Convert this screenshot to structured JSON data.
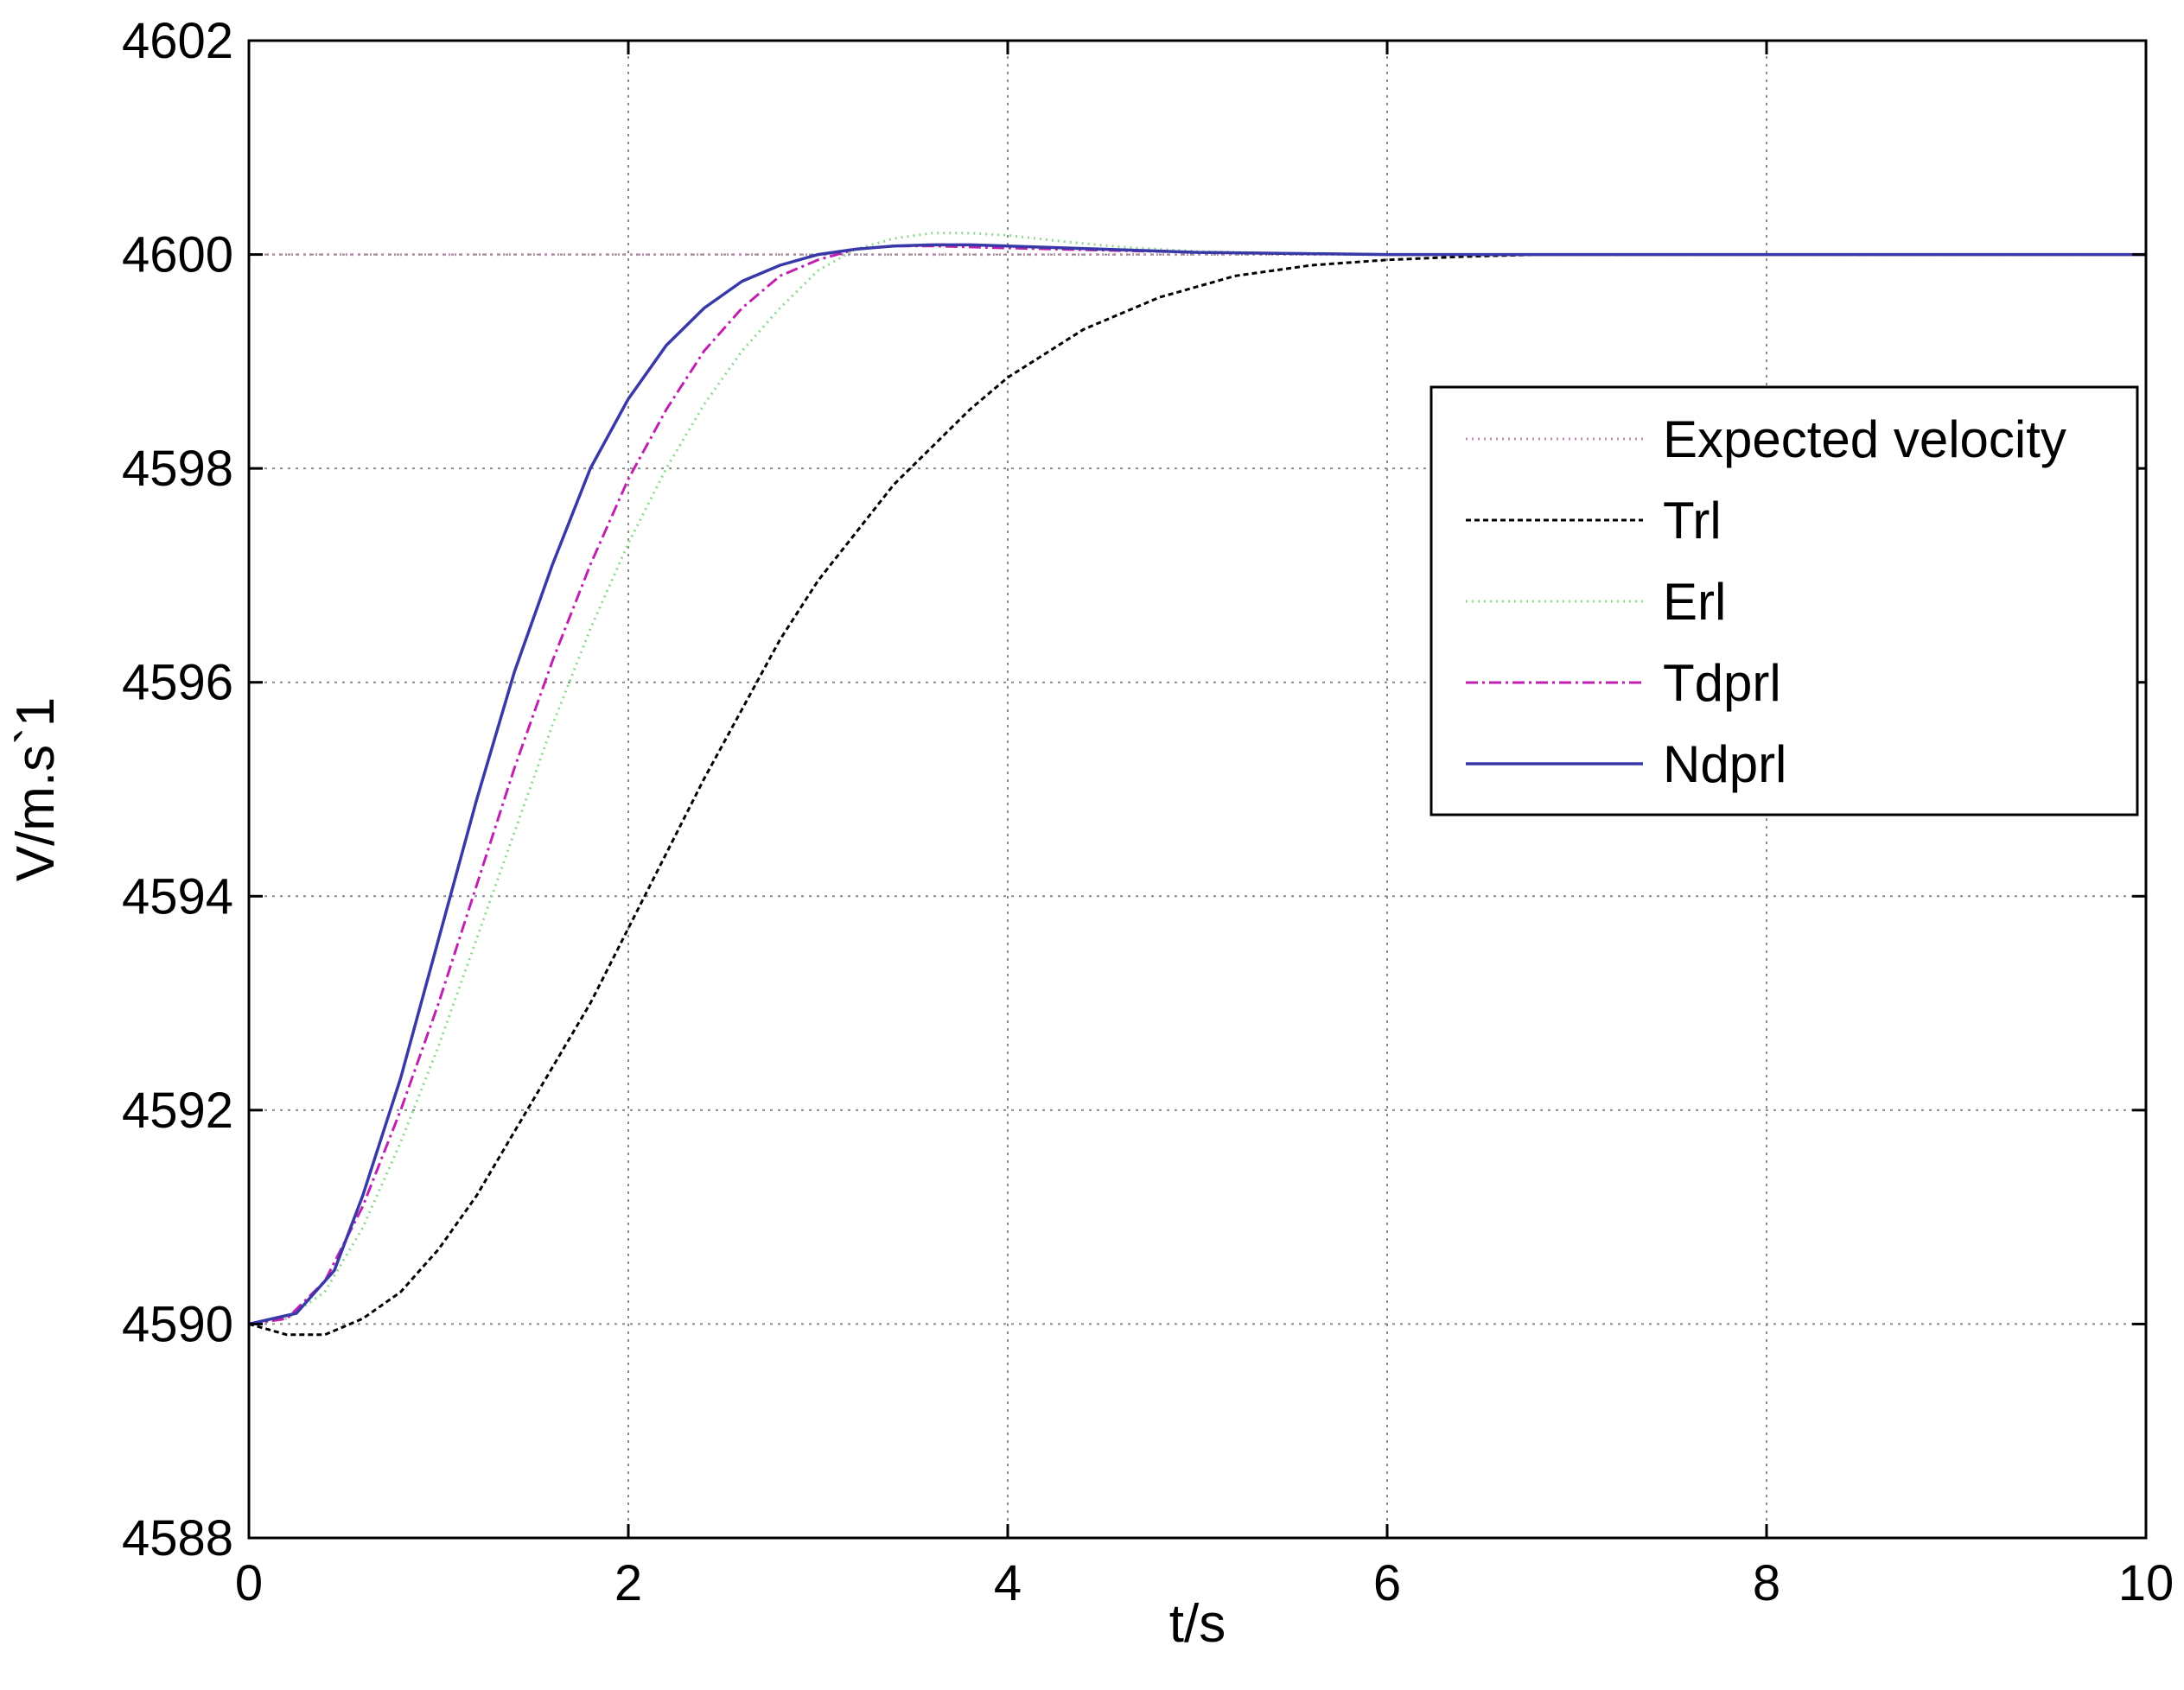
{
  "chart_data": {
    "type": "line",
    "title": "",
    "xlabel": "t/s",
    "ylabel": "V/m.s`1",
    "xlim": [
      0,
      10
    ],
    "ylim": [
      4588,
      4602
    ],
    "xticks": [
      0,
      2,
      4,
      6,
      8,
      10
    ],
    "yticks": [
      4588,
      4590,
      4592,
      4594,
      4596,
      4598,
      4600,
      4602
    ],
    "grid": true,
    "legend_position": "right",
    "series": [
      {
        "name": "Expected velocity",
        "color": "#c08fb0",
        "dash": "dotted",
        "x": [
          0,
          10
        ],
        "y": [
          4600,
          4600
        ]
      },
      {
        "name": "Trl",
        "color": "#000000",
        "dash": "dashed",
        "x": [
          0,
          0.2,
          0.4,
          0.6,
          0.8,
          1.0,
          1.2,
          1.4,
          1.6,
          1.8,
          2.0,
          2.2,
          2.4,
          2.6,
          2.8,
          3.0,
          3.2,
          3.4,
          3.6,
          3.8,
          4.0,
          4.4,
          4.8,
          5.2,
          5.6,
          6.0,
          6.4,
          6.8,
          7.2,
          8.0,
          9.0,
          10.0
        ],
        "y": [
          4590,
          4589.9,
          4589.9,
          4590.05,
          4590.3,
          4590.7,
          4591.2,
          4591.8,
          4592.4,
          4593.0,
          4593.7,
          4594.4,
          4595.1,
          4595.75,
          4596.4,
          4596.95,
          4597.4,
          4597.85,
          4598.2,
          4598.55,
          4598.85,
          4599.3,
          4599.6,
          4599.8,
          4599.9,
          4599.95,
          4599.98,
          4600.0,
          4600.0,
          4600.0,
          4600.0,
          4600.0
        ]
      },
      {
        "name": "Erl",
        "color": "#90d890",
        "dash": "dotted",
        "x": [
          0,
          0.2,
          0.4,
          0.6,
          0.8,
          1.0,
          1.2,
          1.4,
          1.6,
          1.8,
          2.0,
          2.2,
          2.4,
          2.6,
          2.8,
          3.0,
          3.2,
          3.4,
          3.6,
          3.8,
          4.0,
          4.3,
          4.6,
          5.0,
          5.5,
          6.0,
          7.0,
          8.0,
          10.0
        ],
        "y": [
          4590,
          4590.05,
          4590.3,
          4590.9,
          4591.7,
          4592.6,
          4593.6,
          4594.6,
          4595.6,
          4596.5,
          4597.3,
          4598.0,
          4598.6,
          4599.1,
          4599.5,
          4599.85,
          4600.05,
          4600.15,
          4600.2,
          4600.2,
          4600.18,
          4600.12,
          4600.07,
          4600.03,
          4600.01,
          4600.0,
          4600.0,
          4600.0,
          4600.0
        ]
      },
      {
        "name": "Tdprl",
        "color": "#c020b0",
        "dash": "dashdot",
        "x": [
          0,
          0.2,
          0.4,
          0.6,
          0.8,
          1.0,
          1.2,
          1.4,
          1.6,
          1.8,
          2.0,
          2.2,
          2.4,
          2.6,
          2.8,
          3.0,
          3.2,
          3.4,
          3.6,
          3.8,
          4.0,
          4.5,
          5.0,
          6.0,
          8.0,
          10.0
        ],
        "y": [
          4590,
          4590.05,
          4590.4,
          4591.1,
          4592.0,
          4593.0,
          4594.1,
          4595.2,
          4596.2,
          4597.1,
          4597.9,
          4598.55,
          4599.1,
          4599.5,
          4599.8,
          4599.95,
          4600.05,
          4600.08,
          4600.08,
          4600.07,
          4600.06,
          4600.04,
          4600.02,
          4600.0,
          4600.0,
          4600.0
        ]
      },
      {
        "name": "Ndprl",
        "color": "#3838a8",
        "dash": "solid",
        "x": [
          0,
          0.25,
          0.45,
          0.6,
          0.8,
          1.0,
          1.2,
          1.4,
          1.6,
          1.8,
          2.0,
          2.2,
          2.4,
          2.6,
          2.8,
          3.0,
          3.2,
          3.4,
          3.6,
          3.8,
          4.0,
          4.5,
          5.0,
          6.0,
          8.0,
          10.0
        ],
        "y": [
          4590,
          4590.1,
          4590.5,
          4591.2,
          4592.3,
          4593.6,
          4594.9,
          4596.1,
          4597.1,
          4598.0,
          4598.65,
          4599.15,
          4599.5,
          4599.75,
          4599.9,
          4600.0,
          4600.05,
          4600.08,
          4600.09,
          4600.09,
          4600.08,
          4600.05,
          4600.02,
          4600.0,
          4600.0,
          4600.0
        ]
      }
    ]
  }
}
